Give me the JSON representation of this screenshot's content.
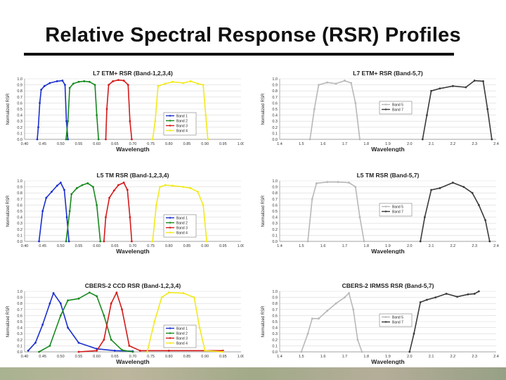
{
  "page_title": "Relative Spectral Response (RSR) Profiles",
  "y_tick_labels": [
    "0.0",
    "0.1",
    "0.2",
    "0.3",
    "0.4",
    "0.5",
    "0.6",
    "0.7",
    "0.8",
    "0.9",
    "1.0"
  ],
  "colors": {
    "band1": "#1a2fcf",
    "band2": "#168a1e",
    "band3": "#d41a1a",
    "band4": "#f2ea1a",
    "band5": "#b8b8b8",
    "band7": "#3a3a3a",
    "grid": "#d9d9d9"
  },
  "chart_data": [
    {
      "type": "line",
      "title": "L7 ETM+ RSR (Band-1,2,3,4)",
      "xlabel": "Wavelength",
      "ylabel": "Normalized RSR",
      "xlim": [
        0.4,
        1.0
      ],
      "ylim": [
        0,
        1.0
      ],
      "xticks": [
        0.4,
        0.45,
        0.5,
        0.55,
        0.6,
        0.65,
        0.7,
        0.75,
        0.8,
        0.85,
        0.9,
        0.95,
        1.0
      ],
      "xtick_labels": [
        "0.40",
        "0.45",
        "0.50",
        "0.55",
        "0.60",
        "0.65",
        "0.70",
        "0.75",
        "0.80",
        "0.85",
        "0.90",
        "0.95",
        "1.00"
      ],
      "legend": [
        "Band 1",
        "Band 2",
        "Band 3",
        "Band 4"
      ],
      "series": [
        {
          "name": "Band 1",
          "color": "#1a2fcf",
          "points": [
            [
              0.435,
              0
            ],
            [
              0.438,
              0.2
            ],
            [
              0.442,
              0.6
            ],
            [
              0.446,
              0.82
            ],
            [
              0.455,
              0.88
            ],
            [
              0.47,
              0.93
            ],
            [
              0.49,
              0.96
            ],
            [
              0.505,
              0.97
            ],
            [
              0.512,
              0.9
            ],
            [
              0.516,
              0.3
            ],
            [
              0.52,
              0
            ]
          ]
        },
        {
          "name": "Band 2",
          "color": "#168a1e",
          "points": [
            [
              0.515,
              0
            ],
            [
              0.52,
              0.3
            ],
            [
              0.525,
              0.85
            ],
            [
              0.535,
              0.92
            ],
            [
              0.55,
              0.95
            ],
            [
              0.565,
              0.96
            ],
            [
              0.58,
              0.95
            ],
            [
              0.595,
              0.9
            ],
            [
              0.6,
              0.4
            ],
            [
              0.605,
              0
            ]
          ]
        },
        {
          "name": "Band 3",
          "color": "#d41a1a",
          "points": [
            [
              0.625,
              0
            ],
            [
              0.628,
              0.5
            ],
            [
              0.633,
              0.9
            ],
            [
              0.645,
              0.96
            ],
            [
              0.66,
              0.98
            ],
            [
              0.675,
              0.97
            ],
            [
              0.687,
              0.9
            ],
            [
              0.692,
              0.3
            ],
            [
              0.697,
              0
            ]
          ]
        },
        {
          "name": "Band 4",
          "color": "#f2ea1a",
          "points": [
            [
              0.755,
              0
            ],
            [
              0.762,
              0.3
            ],
            [
              0.77,
              0.88
            ],
            [
              0.79,
              0.92
            ],
            [
              0.81,
              0.95
            ],
            [
              0.84,
              0.93
            ],
            [
              0.86,
              0.96
            ],
            [
              0.88,
              0.92
            ],
            [
              0.895,
              0.9
            ],
            [
              0.902,
              0.4
            ],
            [
              0.908,
              0
            ]
          ]
        }
      ]
    },
    {
      "type": "line",
      "title": "L7 ETM+ RSR (Band-5,7)",
      "xlabel": "Wavelength",
      "ylabel": "Normalized RSR",
      "xlim": [
        1.4,
        2.4
      ],
      "ylim": [
        0,
        1.0
      ],
      "xticks": [
        1.4,
        1.5,
        1.6,
        1.7,
        1.8,
        1.9,
        2.0,
        2.1,
        2.2,
        2.3,
        2.4
      ],
      "xtick_labels": [
        "1.4",
        "1.5",
        "1.6",
        "1.7",
        "1.8",
        "1.9",
        "2.0",
        "2.1",
        "2.2",
        "2.3",
        "2.4"
      ],
      "legend": [
        "Band 5",
        "Band 7"
      ],
      "series": [
        {
          "name": "Band 5",
          "color": "#b8b8b8",
          "points": [
            [
              1.54,
              0
            ],
            [
              1.56,
              0.5
            ],
            [
              1.58,
              0.9
            ],
            [
              1.62,
              0.94
            ],
            [
              1.66,
              0.92
            ],
            [
              1.7,
              0.97
            ],
            [
              1.73,
              0.93
            ],
            [
              1.75,
              0.6
            ],
            [
              1.77,
              0
            ]
          ]
        },
        {
          "name": "Band 7",
          "color": "#3a3a3a",
          "points": [
            [
              2.06,
              0
            ],
            [
              2.08,
              0.4
            ],
            [
              2.1,
              0.8
            ],
            [
              2.14,
              0.84
            ],
            [
              2.2,
              0.88
            ],
            [
              2.26,
              0.86
            ],
            [
              2.3,
              0.97
            ],
            [
              2.34,
              0.96
            ],
            [
              2.36,
              0.5
            ],
            [
              2.38,
              0
            ]
          ]
        }
      ]
    },
    {
      "type": "line",
      "title": "L5 TM RSR (Band-1,2,3,4)",
      "xlabel": "Wavelength",
      "ylabel": "Normalized RSR",
      "xlim": [
        0.4,
        1.0
      ],
      "ylim": [
        0,
        1.0
      ],
      "xticks": [
        0.4,
        0.45,
        0.5,
        0.55,
        0.6,
        0.65,
        0.7,
        0.75,
        0.8,
        0.85,
        0.9,
        0.95,
        1.0
      ],
      "xtick_labels": [
        "0.40",
        "0.45",
        "0.50",
        "0.55",
        "0.60",
        "0.65",
        "0.70",
        "0.75",
        "0.80",
        "0.85",
        "0.90",
        "0.95",
        "1.00"
      ],
      "legend": [
        "Band 1",
        "Band 2",
        "Band 3",
        "Band 4"
      ],
      "series": [
        {
          "name": "Band 1",
          "color": "#1a2fcf",
          "points": [
            [
              0.44,
              0
            ],
            [
              0.45,
              0.5
            ],
            [
              0.46,
              0.72
            ],
            [
              0.475,
              0.82
            ],
            [
              0.49,
              0.92
            ],
            [
              0.5,
              0.97
            ],
            [
              0.51,
              0.85
            ],
            [
              0.517,
              0.4
            ],
            [
              0.523,
              0
            ]
          ]
        },
        {
          "name": "Band 2",
          "color": "#168a1e",
          "points": [
            [
              0.515,
              0
            ],
            [
              0.525,
              0.5
            ],
            [
              0.53,
              0.78
            ],
            [
              0.545,
              0.88
            ],
            [
              0.56,
              0.93
            ],
            [
              0.575,
              0.96
            ],
            [
              0.59,
              0.9
            ],
            [
              0.6,
              0.6
            ],
            [
              0.61,
              0
            ]
          ]
        },
        {
          "name": "Band 3",
          "color": "#d41a1a",
          "points": [
            [
              0.62,
              0
            ],
            [
              0.625,
              0.4
            ],
            [
              0.635,
              0.72
            ],
            [
              0.648,
              0.84
            ],
            [
              0.66,
              0.93
            ],
            [
              0.675,
              0.97
            ],
            [
              0.685,
              0.85
            ],
            [
              0.692,
              0.4
            ],
            [
              0.697,
              0
            ]
          ]
        },
        {
          "name": "Band 4",
          "color": "#f2ea1a",
          "points": [
            [
              0.755,
              0
            ],
            [
              0.765,
              0.6
            ],
            [
              0.775,
              0.9
            ],
            [
              0.79,
              0.93
            ],
            [
              0.81,
              0.92
            ],
            [
              0.84,
              0.9
            ],
            [
              0.86,
              0.88
            ],
            [
              0.88,
              0.82
            ],
            [
              0.895,
              0.6
            ],
            [
              0.905,
              0
            ]
          ]
        }
      ]
    },
    {
      "type": "line",
      "title": "L5 TM RSR (Band-5,7)",
      "xlabel": "Wavelength",
      "ylabel": "Normalized RSR",
      "xlim": [
        1.4,
        2.4
      ],
      "ylim": [
        0,
        1.0
      ],
      "xticks": [
        1.4,
        1.5,
        1.6,
        1.7,
        1.8,
        1.9,
        2.0,
        2.1,
        2.2,
        2.3,
        2.4
      ],
      "xtick_labels": [
        "1.4",
        "1.5",
        "1.6",
        "1.7",
        "1.8",
        "1.9",
        "2.0",
        "2.1",
        "2.2",
        "2.3",
        "2.4"
      ],
      "legend": [
        "Band 5",
        "Band 7"
      ],
      "series": [
        {
          "name": "Band 5",
          "color": "#b8b8b8",
          "points": [
            [
              1.53,
              0
            ],
            [
              1.55,
              0.7
            ],
            [
              1.57,
              0.96
            ],
            [
              1.62,
              0.98
            ],
            [
              1.67,
              0.98
            ],
            [
              1.72,
              0.97
            ],
            [
              1.75,
              0.9
            ],
            [
              1.77,
              0.4
            ],
            [
              1.79,
              0
            ]
          ]
        },
        {
          "name": "Band 7",
          "color": "#3a3a3a",
          "points": [
            [
              2.05,
              0
            ],
            [
              2.07,
              0.4
            ],
            [
              2.1,
              0.85
            ],
            [
              2.14,
              0.88
            ],
            [
              2.2,
              0.97
            ],
            [
              2.25,
              0.9
            ],
            [
              2.29,
              0.8
            ],
            [
              2.32,
              0.6
            ],
            [
              2.35,
              0.35
            ],
            [
              2.37,
              0
            ]
          ]
        }
      ]
    },
    {
      "type": "line",
      "title": "CBERS-2 CCD RSR (Band-1,2,3,4)",
      "xlabel": "Wavelength",
      "ylabel": "Normalized RSR",
      "xlim": [
        0.4,
        1.0
      ],
      "ylim": [
        0,
        1.0
      ],
      "xticks": [
        0.4,
        0.45,
        0.5,
        0.55,
        0.6,
        0.65,
        0.7,
        0.75,
        0.8,
        0.85,
        0.9,
        0.95,
        1.0
      ],
      "xtick_labels": [
        "0.40",
        "0.45",
        "0.50",
        "0.55",
        "0.60",
        "0.65",
        "0.70",
        "0.75",
        "0.80",
        "0.85",
        "0.90",
        "0.95",
        "1.00"
      ],
      "legend": [
        "Band 1",
        "Band 2",
        "Band 3",
        "Band 4"
      ],
      "series": [
        {
          "name": "Band 1",
          "color": "#1a2fcf",
          "points": [
            [
              0.41,
              0.02
            ],
            [
              0.43,
              0.15
            ],
            [
              0.45,
              0.45
            ],
            [
              0.47,
              0.8
            ],
            [
              0.48,
              0.97
            ],
            [
              0.5,
              0.8
            ],
            [
              0.52,
              0.4
            ],
            [
              0.55,
              0.15
            ],
            [
              0.6,
              0.05
            ],
            [
              0.65,
              0.02
            ],
            [
              0.7,
              0.01
            ]
          ]
        },
        {
          "name": "Band 2",
          "color": "#168a1e",
          "points": [
            [
              0.44,
              0
            ],
            [
              0.47,
              0.1
            ],
            [
              0.5,
              0.6
            ],
            [
              0.52,
              0.85
            ],
            [
              0.55,
              0.88
            ],
            [
              0.58,
              0.98
            ],
            [
              0.6,
              0.92
            ],
            [
              0.62,
              0.6
            ],
            [
              0.64,
              0.2
            ],
            [
              0.67,
              0.03
            ],
            [
              0.7,
              0
            ]
          ]
        },
        {
          "name": "Band 3",
          "color": "#d41a1a",
          "points": [
            [
              0.55,
              0
            ],
            [
              0.6,
              0.02
            ],
            [
              0.62,
              0.2
            ],
            [
              0.64,
              0.8
            ],
            [
              0.655,
              0.98
            ],
            [
              0.67,
              0.7
            ],
            [
              0.69,
              0.1
            ],
            [
              0.72,
              0.02
            ],
            [
              0.8,
              0.02
            ],
            [
              0.9,
              0.02
            ],
            [
              0.95,
              0.02
            ]
          ]
        },
        {
          "name": "Band 4",
          "color": "#f2ea1a",
          "points": [
            [
              0.74,
              0
            ],
            [
              0.76,
              0.5
            ],
            [
              0.78,
              0.9
            ],
            [
              0.8,
              0.98
            ],
            [
              0.84,
              0.97
            ],
            [
              0.87,
              0.9
            ],
            [
              0.885,
              0.4
            ],
            [
              0.9,
              0.02
            ],
            [
              0.95,
              0
            ]
          ]
        }
      ]
    },
    {
      "type": "line",
      "title": "CBERS-2 IRMSS RSR (Band-5,7)",
      "xlabel": "Wavelength",
      "ylabel": "Normalized RSR",
      "xlim": [
        1.4,
        2.4
      ],
      "ylim": [
        0,
        1.0
      ],
      "xticks": [
        1.4,
        1.5,
        1.6,
        1.7,
        1.8,
        1.9,
        2.0,
        2.1,
        2.2,
        2.3,
        2.4
      ],
      "xtick_labels": [
        "1.4",
        "1.5",
        "1.6",
        "1.7",
        "1.8",
        "1.9",
        "2.0",
        "2.1",
        "2.2",
        "2.3",
        "2.4"
      ],
      "legend": [
        "Band 5",
        "Band 7"
      ],
      "series": [
        {
          "name": "Band 5",
          "color": "#b8b8b8",
          "points": [
            [
              1.5,
              0
            ],
            [
              1.53,
              0.3
            ],
            [
              1.55,
              0.55
            ],
            [
              1.58,
              0.55
            ],
            [
              1.62,
              0.68
            ],
            [
              1.66,
              0.8
            ],
            [
              1.7,
              0.9
            ],
            [
              1.72,
              0.97
            ],
            [
              1.74,
              0.7
            ],
            [
              1.76,
              0.2
            ],
            [
              1.78,
              0
            ]
          ]
        },
        {
          "name": "Band 7",
          "color": "#3a3a3a",
          "points": [
            [
              2.0,
              0
            ],
            [
              2.02,
              0.3
            ],
            [
              2.05,
              0.82
            ],
            [
              2.08,
              0.86
            ],
            [
              2.12,
              0.9
            ],
            [
              2.17,
              0.96
            ],
            [
              2.22,
              0.91
            ],
            [
              2.27,
              0.95
            ],
            [
              2.3,
              0.96
            ],
            [
              2.32,
              1.0
            ]
          ]
        }
      ]
    }
  ]
}
